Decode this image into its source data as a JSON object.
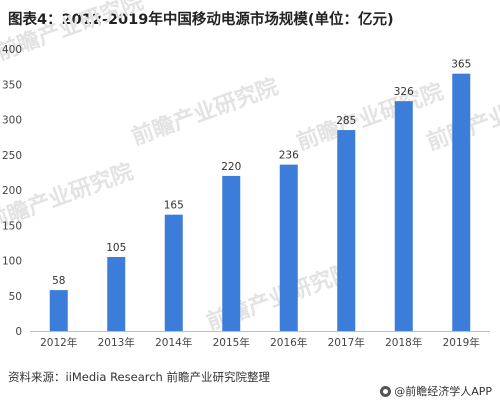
{
  "title": "图表4：2012-2019年中国移动电源市场规模(单位：亿元)",
  "source": "资料来源：iiMedia Research 前瞻产业研究院整理",
  "brand": "@前瞻经济学人APP",
  "watermark": "前瞻产业研究院",
  "chart_data": {
    "type": "bar",
    "categories": [
      "2012年",
      "2013年",
      "2014年",
      "2015年",
      "2016年",
      "2017年",
      "2018年",
      "2019年"
    ],
    "values": [
      58,
      105,
      165,
      220,
      236,
      285,
      326,
      365
    ],
    "ylim": [
      0,
      400
    ],
    "yticks": [
      0,
      50,
      100,
      150,
      200,
      250,
      300,
      350,
      400
    ],
    "bar_color": "#3b7dd8",
    "data_labels": true,
    "grid": false
  }
}
